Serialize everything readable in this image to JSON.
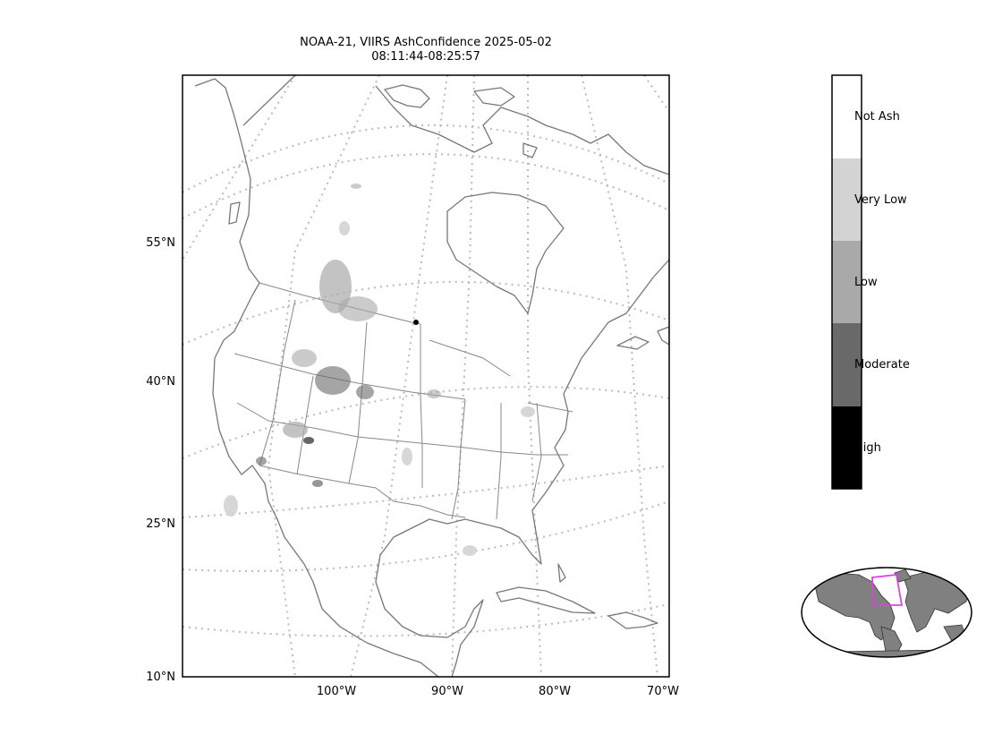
{
  "title": {
    "line1": "NOAA-21, VIIRS AshConfidence 2025-05-02",
    "line2": "08:11:44-08:25:57"
  },
  "map": {
    "lat_labels": [
      "55°N",
      "40°N",
      "25°N",
      "10°N"
    ],
    "lon_labels": [
      "100°W",
      "90°W",
      "80°W",
      "70°W"
    ],
    "coastline_color": "#777777",
    "graticule_color": "#bbbbbb"
  },
  "colorbar": {
    "classes": [
      {
        "label": "Not Ash",
        "color": "#ffffff"
      },
      {
        "label": "Very Low",
        "color": "#d3d3d3"
      },
      {
        "label": "Low",
        "color": "#a9a9a9"
      },
      {
        "label": "Moderate",
        "color": "#696969"
      },
      {
        "label": "High",
        "color": "#000000"
      }
    ]
  },
  "inset": {
    "land_color": "#808080",
    "extent_box_color": "#e040e0"
  }
}
